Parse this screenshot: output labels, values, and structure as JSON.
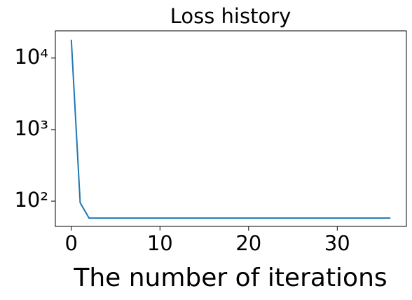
{
  "chart_data": {
    "type": "line",
    "title": "Loss history",
    "x_label": "The number of iterations",
    "x": [
      0,
      1,
      2,
      3,
      4,
      5,
      6,
      7,
      8,
      9,
      10,
      11,
      12,
      13,
      14,
      15,
      16,
      17,
      18,
      19,
      20,
      21,
      22,
      23,
      24,
      25,
      26,
      27,
      28,
      29,
      30,
      31,
      32,
      33,
      34,
      35,
      36
    ],
    "series": [
      {
        "color": "#1f77b4",
        "values": [
          18000,
          95,
          58,
          58,
          58,
          58,
          58,
          58,
          58,
          58,
          58,
          58,
          58,
          58,
          58,
          58,
          58,
          58,
          58,
          58,
          58,
          58,
          58,
          58,
          58,
          58,
          58,
          58,
          58,
          58,
          58,
          58,
          58,
          58,
          58,
          58,
          58
        ]
      }
    ],
    "xlim": [
      -1.8,
      37.8
    ],
    "xticks": [
      0,
      10,
      20,
      30
    ],
    "ylim": [
      44.4,
      24000
    ],
    "ylog": true,
    "yticks": [
      {
        "value": 100,
        "label": "10²"
      },
      {
        "value": 1000,
        "label": "10³"
      },
      {
        "value": 10000,
        "label": "10⁴"
      }
    ]
  }
}
